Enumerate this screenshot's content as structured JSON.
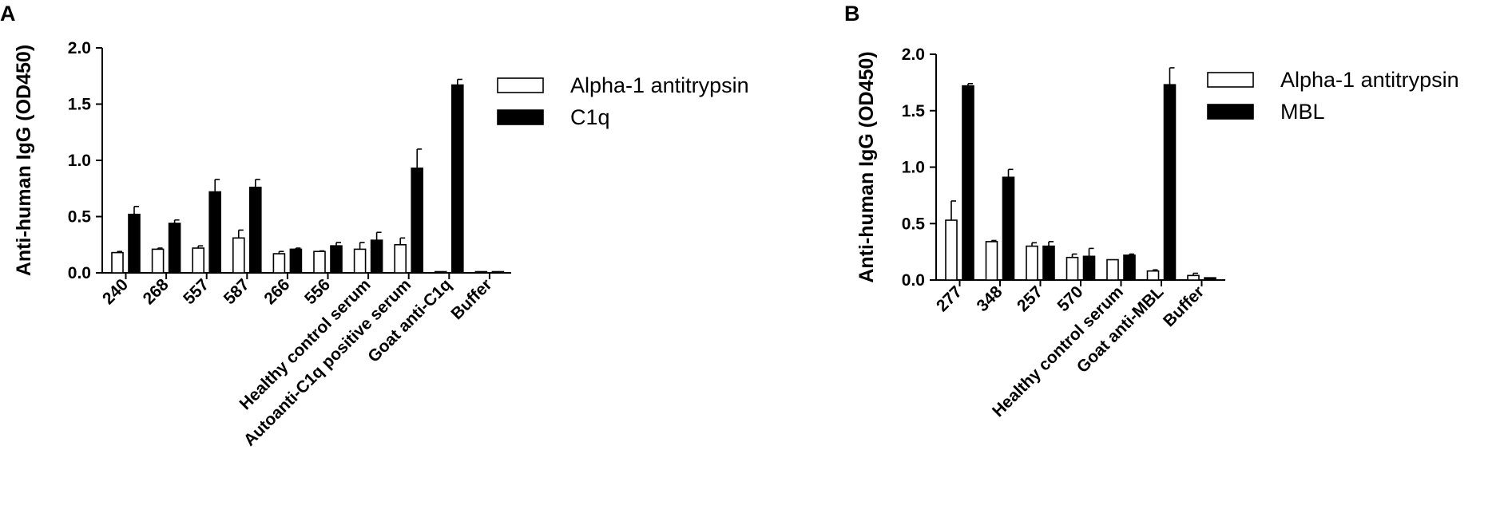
{
  "chart_data": [
    {
      "panel_label": "A",
      "type": "bar",
      "ylabel": "Anti-human IgG (OD450)",
      "ylim": [
        0,
        2.0
      ],
      "yticks": [
        "0.0",
        "0.5",
        "1.0",
        "1.5",
        "2.0"
      ],
      "categories": [
        "240",
        "268",
        "557",
        "587",
        "266",
        "556",
        "Healthy control serum",
        "Autoanti-C1q positive serum",
        "Goat anti-C1q",
        "Buffer"
      ],
      "legend_position": "top-right",
      "series": [
        {
          "name": "Alpha-1 antitrypsin",
          "color": "#ffffff",
          "values": [
            0.18,
            0.21,
            0.22,
            0.31,
            0.17,
            0.19,
            0.21,
            0.25,
            0.01,
            0.01
          ],
          "errors": [
            0.01,
            0.01,
            0.02,
            0.07,
            0.02,
            0.005,
            0.06,
            0.06,
            0.0,
            0.0
          ]
        },
        {
          "name": "C1q",
          "color": "#000000",
          "values": [
            0.52,
            0.44,
            0.72,
            0.76,
            0.21,
            0.24,
            0.29,
            0.93,
            1.67,
            0.01
          ],
          "errors": [
            0.07,
            0.03,
            0.11,
            0.07,
            0.01,
            0.03,
            0.07,
            0.17,
            0.05,
            0.0
          ]
        }
      ]
    },
    {
      "panel_label": "B",
      "type": "bar",
      "ylabel": "Anti-human IgG (OD450)",
      "ylim": [
        0,
        2.0
      ],
      "yticks": [
        "0.0",
        "0.5",
        "1.0",
        "1.5",
        "2.0"
      ],
      "categories": [
        "277",
        "348",
        "257",
        "570",
        "Healthy control serum",
        "Goat anti-MBL",
        "Buffer"
      ],
      "legend_position": "top-right",
      "series": [
        {
          "name": "Alpha-1 antitrypsin",
          "color": "#ffffff",
          "values": [
            0.53,
            0.34,
            0.3,
            0.2,
            0.18,
            0.08,
            0.04
          ],
          "errors": [
            0.17,
            0.01,
            0.03,
            0.03,
            0.0,
            0.01,
            0.02
          ]
        },
        {
          "name": "MBL",
          "color": "#000000",
          "values": [
            1.72,
            0.91,
            0.3,
            0.21,
            0.22,
            1.73,
            0.02
          ],
          "errors": [
            0.02,
            0.07,
            0.04,
            0.07,
            0.01,
            0.15,
            0.0
          ]
        }
      ]
    }
  ]
}
